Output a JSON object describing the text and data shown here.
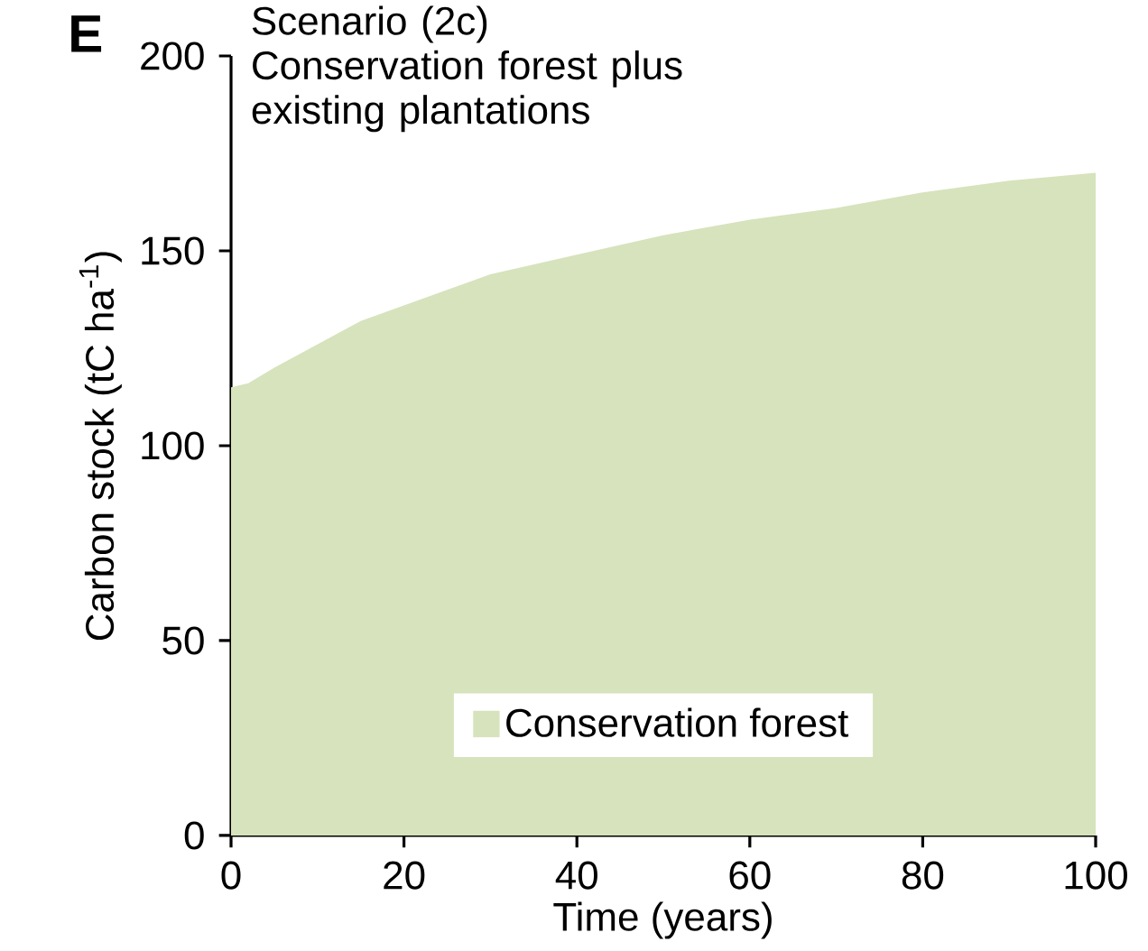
{
  "chart_data": {
    "type": "area",
    "title": "Scenario (2c)",
    "subtitle": "Conservation forest plus existing plantations",
    "xlabel": "Time (years)",
    "ylabel": "Carbon stock (tC ha$^{-1}$)",
    "annotations": [
      "E"
    ],
    "x": [
      0,
      2,
      5,
      10,
      15,
      20,
      30,
      40,
      50,
      60,
      70,
      80,
      90,
      100
    ],
    "series": [
      {
        "name": "Conservation forest",
        "color": "#d6e3bc",
        "values": [
          115,
          116,
          120,
          126,
          132,
          136,
          144,
          149,
          154,
          158,
          161,
          165,
          168,
          170
        ]
      }
    ],
    "xlim": [
      0,
      100
    ],
    "ylim": [
      0,
      200
    ],
    "xticks": [
      0,
      20,
      40,
      60,
      80,
      100
    ],
    "yticks": [
      0,
      50,
      100,
      150,
      200
    ],
    "legend": "bottom"
  }
}
